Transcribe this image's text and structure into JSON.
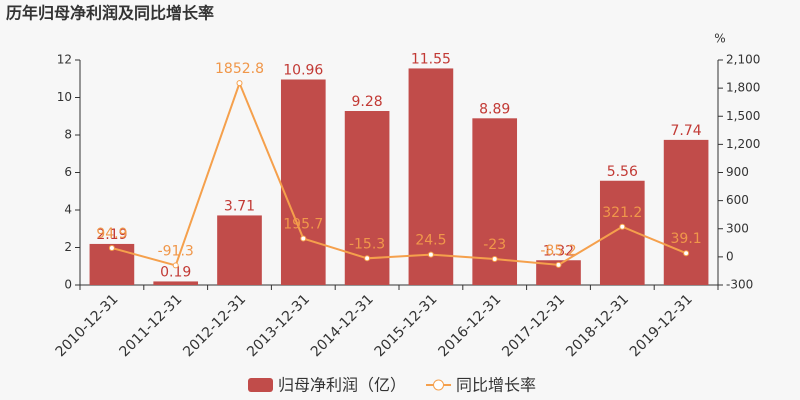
{
  "chart_data": {
    "type": "bar",
    "title": "历年归母净利润及同比增长率",
    "categories": [
      "2010-12-31",
      "2011-12-31",
      "2012-12-31",
      "2013-12-31",
      "2014-12-31",
      "2015-12-31",
      "2016-12-31",
      "2017-12-31",
      "2018-12-31",
      "2019-12-31"
    ],
    "series": [
      {
        "name": "归母净利润（亿）",
        "type": "bar",
        "color": "#c14c4a",
        "label_color": "#c23a35",
        "values": [
          2.19,
          0.19,
          3.71,
          10.96,
          9.28,
          11.55,
          8.89,
          1.32,
          5.56,
          7.74
        ]
      },
      {
        "name": "同比增长率",
        "type": "line",
        "axis": "y2",
        "color": "#f5a04c",
        "label_color": "#f0974a",
        "values": [
          94.9,
          -91.3,
          1852.8,
          195.7,
          -15.3,
          24.5,
          -23,
          -85.2,
          321.2,
          39.1
        ]
      }
    ],
    "ylim": [
      0,
      12
    ],
    "yticks": [
      0,
      2,
      4,
      6,
      8,
      10,
      12
    ],
    "y2lim": [
      -300,
      2100
    ],
    "y2ticks": [
      -300,
      0,
      300,
      600,
      900,
      {
        "value": 1200,
        "label": "1,200"
      },
      {
        "value": 1500,
        "label": "1,500"
      },
      {
        "value": 1800,
        "label": "1,800"
      },
      {
        "value": 2100,
        "label": "2,100"
      }
    ],
    "y2_label": "%",
    "grid": false
  }
}
